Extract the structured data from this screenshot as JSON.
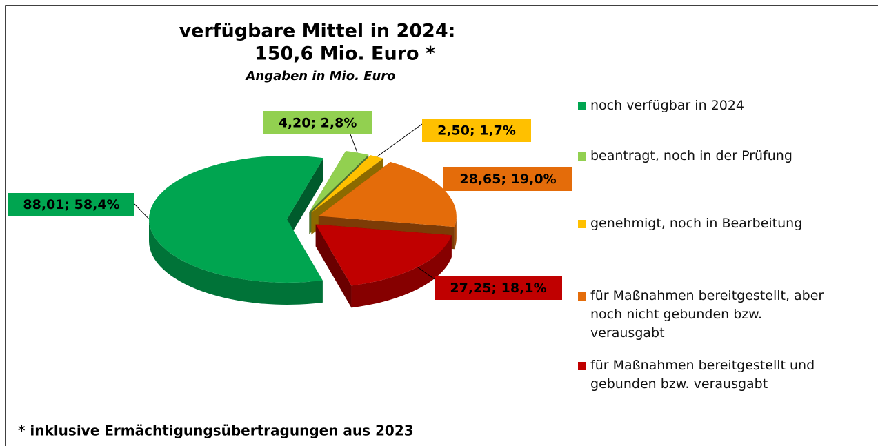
{
  "chart_data": {
    "type": "pie",
    "title": [
      "verfügbare Mittel in 2024:",
      "150,6 Mio. Euro *"
    ],
    "subtitle": "Angaben in Mio. Euro",
    "footnote": "* inklusive Ermächtigungsübertragungen aus 2023",
    "categories": [
      "noch verfügbar in 2024",
      "beantragt, noch in der Prüfung",
      "genehmigt, noch in Bearbeitung",
      "für Maßnahmen bereitgestellt, aber noch nicht gebunden bzw. verausgabt",
      "für Maßnahmen bereitgestellt und gebunden bzw. verausgabt"
    ],
    "values": [
      88.01,
      4.2,
      2.5,
      28.65,
      27.25
    ],
    "value_labels": [
      "88,01; 58,4%",
      "4,20; 2,8%",
      "2,50; 1,7%",
      "28,65; 19,0%",
      "27,25; 18,1%"
    ],
    "colors": [
      "#00a550",
      "#92d050",
      "#ffc000",
      "#e46c0a",
      "#c00000"
    ],
    "legend": "right"
  }
}
